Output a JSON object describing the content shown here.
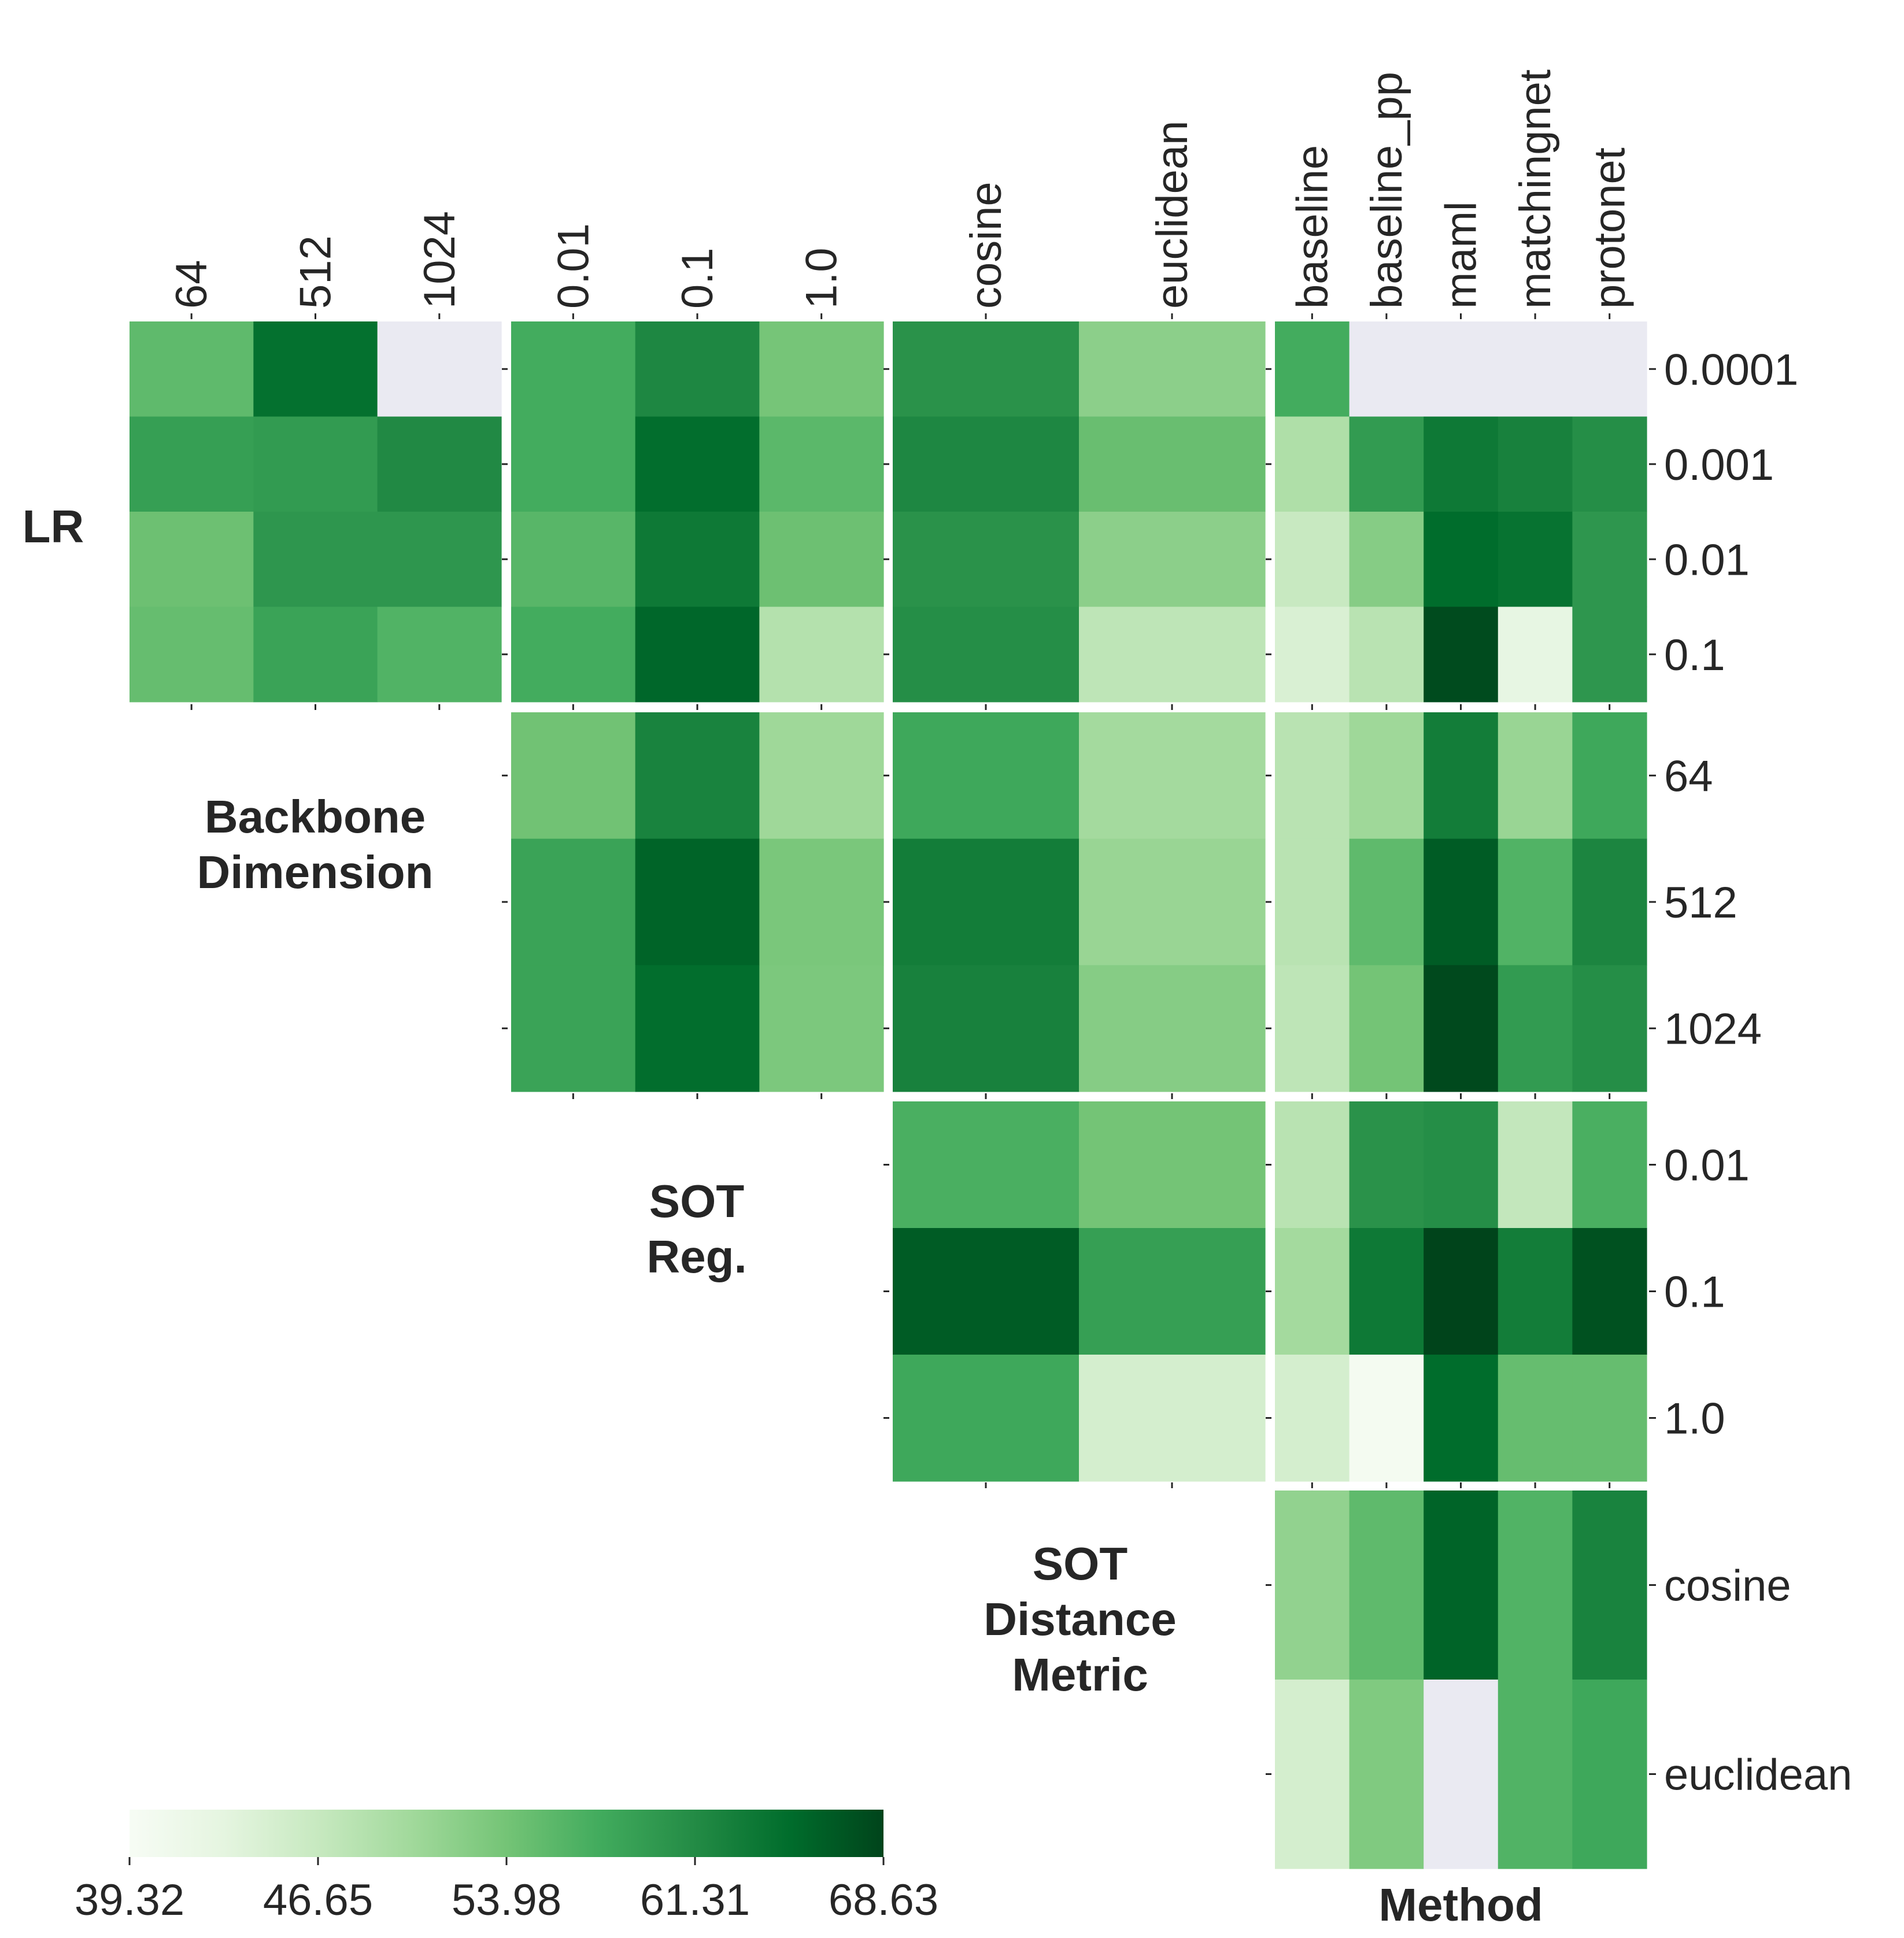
{
  "chart_data": {
    "type": "heatmap",
    "colormap": "Greens",
    "missing_color": "#eaeaf2",
    "colorbar": {
      "min": 39.32,
      "max": 68.63,
      "ticks": [
        "39.32",
        "46.65",
        "53.98",
        "61.31",
        "68.63"
      ]
    },
    "columns": {
      "Backbone Dimension": [
        "64",
        "512",
        "1024"
      ],
      "SOT Reg.": [
        "0.01",
        "0.1",
        "1.0"
      ],
      "SOT Distance Metric": [
        "cosine",
        "euclidean"
      ],
      "Method": [
        "baseline",
        "baseline_pp",
        "maml",
        "matchingnet",
        "protonet"
      ]
    },
    "row_groups": [
      {
        "label": "LR",
        "lines": [
          "LR"
        ],
        "rows": [
          "0.0001",
          "0.001",
          "0.01",
          "0.1"
        ]
      },
      {
        "label": "Backbone Dimension",
        "lines": [
          "Backbone",
          "Dimension"
        ],
        "rows": [
          "64",
          "512",
          "1024"
        ]
      },
      {
        "label": "SOT Reg.",
        "lines": [
          "SOT",
          "Reg."
        ],
        "rows": [
          "0.01",
          "0.1",
          "1.0"
        ]
      },
      {
        "label": "SOT Distance Metric",
        "lines": [
          "SOT",
          "Distance",
          "Metric"
        ],
        "rows": [
          "cosine",
          "euclidean"
        ]
      }
    ],
    "method_label": "Method",
    "blocks": [
      {
        "row": "LR",
        "col": "Backbone Dimension",
        "values": [
          [
            55.5,
            64.5,
            null
          ],
          [
            59.0,
            59.5,
            61.5
          ],
          [
            54.5,
            60.0,
            60.0
          ],
          [
            55.0,
            58.5,
            56.5
          ]
        ]
      },
      {
        "row": "LR",
        "col": "SOT Reg.",
        "values": [
          [
            57.5,
            61.8,
            53.8
          ],
          [
            57.5,
            64.8,
            55.8
          ],
          [
            56.0,
            63.5,
            54.5
          ],
          [
            57.5,
            65.5,
            48.5
          ]
        ]
      },
      {
        "row": "LR",
        "col": "SOT Distance Metric",
        "values": [
          [
            60.5,
            52.0
          ],
          [
            61.8,
            54.8
          ],
          [
            60.5,
            52.0
          ],
          [
            61.0,
            47.5
          ]
        ]
      },
      {
        "row": "LR",
        "col": "Method",
        "values": [
          [
            57.5,
            null,
            null,
            null,
            null
          ],
          [
            49.0,
            59.5,
            63.5,
            62.5,
            61.0
          ],
          [
            46.5,
            52.5,
            65.0,
            64.2,
            60.0
          ],
          [
            44.5,
            48.0,
            68.0,
            42.5,
            60.0
          ]
        ]
      },
      {
        "row": "Backbone Dimension",
        "col": "SOT Reg.",
        "values": [
          [
            54.2,
            62.3,
            50.5
          ],
          [
            58.5,
            65.8,
            53.5
          ],
          [
            58.5,
            64.8,
            53.3
          ]
        ]
      },
      {
        "row": "Backbone Dimension",
        "col": "SOT Distance Metric",
        "values": [
          [
            58.0,
            50.0
          ],
          [
            63.0,
            51.0
          ],
          [
            62.5,
            52.5
          ]
        ]
      },
      {
        "row": "Backbone Dimension",
        "col": "Method",
        "values": [
          [
            48.0,
            50.5,
            63.0,
            51.0,
            58.0
          ],
          [
            48.0,
            55.5,
            66.5,
            56.5,
            62.0
          ],
          [
            47.5,
            54.0,
            68.2,
            59.5,
            61.0
          ]
        ]
      },
      {
        "row": "SOT Reg.",
        "col": "SOT Distance Metric",
        "values": [
          [
            57.0,
            54.0
          ],
          [
            66.5,
            59.0
          ],
          [
            58.0,
            45.0
          ]
        ]
      },
      {
        "row": "SOT Reg.",
        "col": "Method",
        "values": [
          [
            48.0,
            60.5,
            61.0,
            47.0,
            57.0
          ],
          [
            50.0,
            63.5,
            68.63,
            63.0,
            67.5
          ],
          [
            45.0,
            40.0,
            65.0,
            55.0,
            55.0
          ]
        ]
      },
      {
        "row": "SOT Distance Metric",
        "col": "Method",
        "values": [
          [
            51.5,
            55.5,
            65.8,
            56.5,
            62.3
          ],
          [
            45.0,
            53.0,
            null,
            56.5,
            58.0
          ]
        ]
      }
    ]
  }
}
